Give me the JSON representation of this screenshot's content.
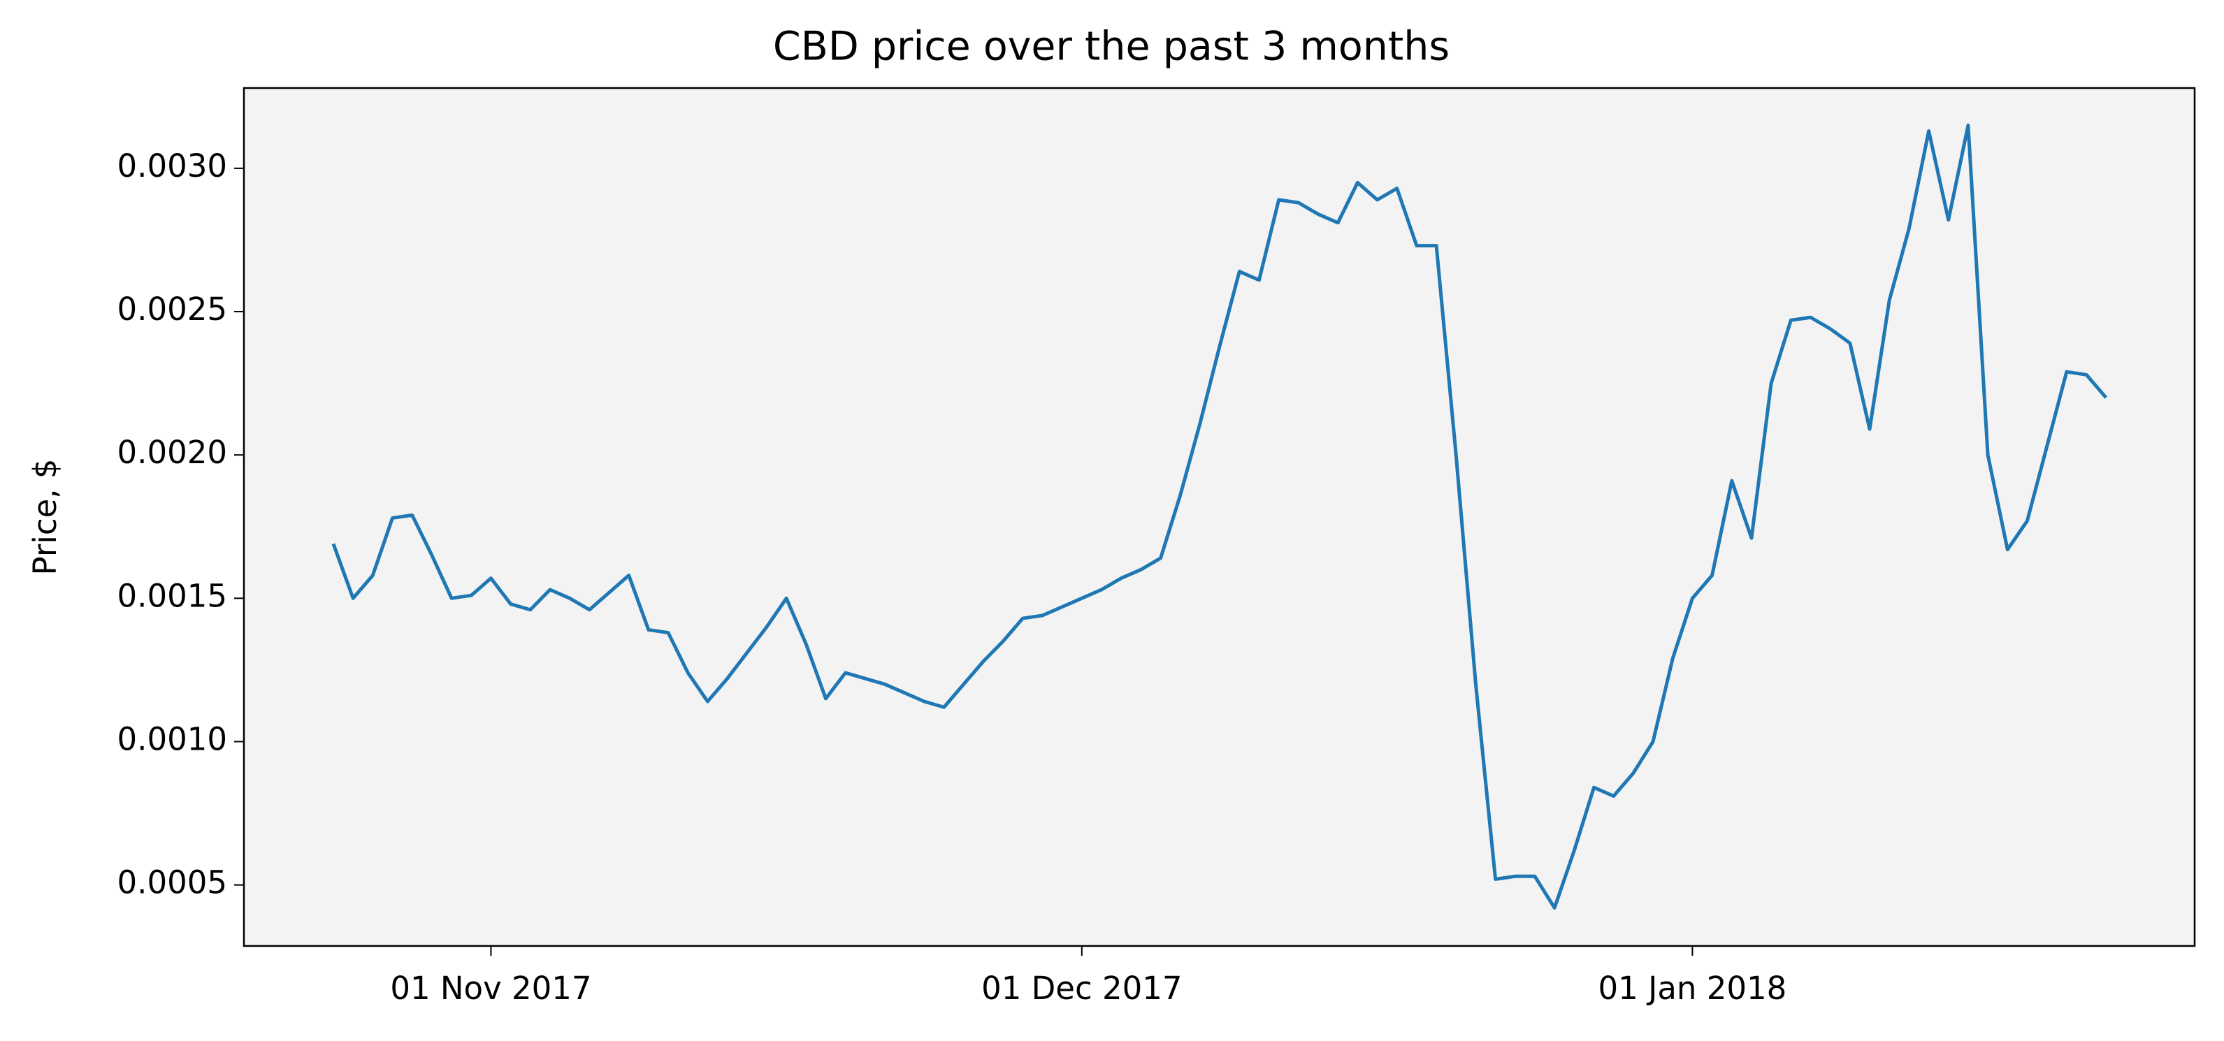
{
  "chart_data": {
    "type": "line",
    "title": "CBD price over the past 3 months",
    "y_label": "Price, $",
    "x": [
      "2017-10-24",
      "2017-10-25",
      "2017-10-26",
      "2017-10-27",
      "2017-10-28",
      "2017-10-29",
      "2017-10-30",
      "2017-10-31",
      "2017-11-01",
      "2017-11-02",
      "2017-11-03",
      "2017-11-04",
      "2017-11-05",
      "2017-11-06",
      "2017-11-07",
      "2017-11-08",
      "2017-11-09",
      "2017-11-10",
      "2017-11-11",
      "2017-11-12",
      "2017-11-13",
      "2017-11-14",
      "2017-11-15",
      "2017-11-16",
      "2017-11-17",
      "2017-11-18",
      "2017-11-19",
      "2017-11-20",
      "2017-11-21",
      "2017-11-22",
      "2017-11-23",
      "2017-11-24",
      "2017-11-25",
      "2017-11-26",
      "2017-11-27",
      "2017-11-28",
      "2017-11-29",
      "2017-11-30",
      "2017-12-01",
      "2017-12-02",
      "2017-12-03",
      "2017-12-04",
      "2017-12-05",
      "2017-12-06",
      "2017-12-07",
      "2017-12-08",
      "2017-12-09",
      "2017-12-10",
      "2017-12-11",
      "2017-12-12",
      "2017-12-13",
      "2017-12-14",
      "2017-12-15",
      "2017-12-16",
      "2017-12-17",
      "2017-12-18",
      "2017-12-19",
      "2017-12-20",
      "2017-12-21",
      "2017-12-22",
      "2017-12-23",
      "2017-12-24",
      "2017-12-25",
      "2017-12-26",
      "2017-12-27",
      "2017-12-28",
      "2017-12-29",
      "2017-12-30",
      "2017-12-31",
      "2018-01-01",
      "2018-01-02",
      "2018-01-03",
      "2018-01-04",
      "2018-01-05",
      "2018-01-06",
      "2018-01-07",
      "2018-01-08",
      "2018-01-09",
      "2018-01-10",
      "2018-01-11",
      "2018-01-12",
      "2018-01-13",
      "2018-01-14",
      "2018-01-15",
      "2018-01-16",
      "2018-01-17",
      "2018-01-18",
      "2018-01-19",
      "2018-01-20",
      "2018-01-21",
      "2018-01-22"
    ],
    "series": [
      {
        "color": "#1f77b4",
        "values": [
          0.00169,
          0.0015,
          0.00158,
          0.00178,
          0.00179,
          0.00165,
          0.0015,
          0.00151,
          0.00157,
          0.00148,
          0.00146,
          0.00153,
          0.0015,
          0.00146,
          0.00152,
          0.00158,
          0.00139,
          0.00138,
          0.00124,
          0.00114,
          0.00122,
          0.00131,
          0.0014,
          0.0015,
          0.00134,
          0.00115,
          0.00124,
          0.00122,
          0.0012,
          0.00117,
          0.00114,
          0.00112,
          0.0012,
          0.00128,
          0.00135,
          0.00143,
          0.00144,
          0.00147,
          0.0015,
          0.00153,
          0.00157,
          0.0016,
          0.00164,
          0.00186,
          0.00211,
          0.00238,
          0.00264,
          0.00261,
          0.00289,
          0.00288,
          0.00284,
          0.00281,
          0.00295,
          0.00289,
          0.00293,
          0.00273,
          0.00273,
          0.002,
          0.0012,
          0.00052,
          0.00053,
          0.00053,
          0.00042,
          0.00062,
          0.00084,
          0.00081,
          0.00089,
          0.001,
          0.00129,
          0.0015,
          0.00158,
          0.00191,
          0.00171,
          0.00225,
          0.00247,
          0.00248,
          0.00244,
          0.00239,
          0.00209,
          0.00254,
          0.00279,
          0.00313,
          0.00282,
          0.00315,
          0.002,
          0.00167,
          0.00177,
          0.00203,
          0.00229,
          0.00228,
          0.0022
        ]
      }
    ],
    "xlim": [
      "2017-10-19T11:00:00Z",
      "2018-01-26T12:00:00Z"
    ],
    "xticks": [
      {
        "value": "2017-11-01",
        "label": "01 Nov 2017"
      },
      {
        "value": "2017-12-01",
        "label": "01 Dec 2017"
      },
      {
        "value": "2018-01-01",
        "label": "01 Jan 2018"
      }
    ],
    "ylim": [
      0.000287,
      0.00328
    ],
    "yticks": [
      {
        "value": 0.0005,
        "label": "0.0005"
      },
      {
        "value": 0.001,
        "label": "0.0010"
      },
      {
        "value": 0.0015,
        "label": "0.0015"
      },
      {
        "value": 0.002,
        "label": "0.0020"
      },
      {
        "value": 0.0025,
        "label": "0.0025"
      },
      {
        "value": 0.003,
        "label": "0.0030"
      }
    ],
    "plot_background": "#f3f3f3"
  }
}
